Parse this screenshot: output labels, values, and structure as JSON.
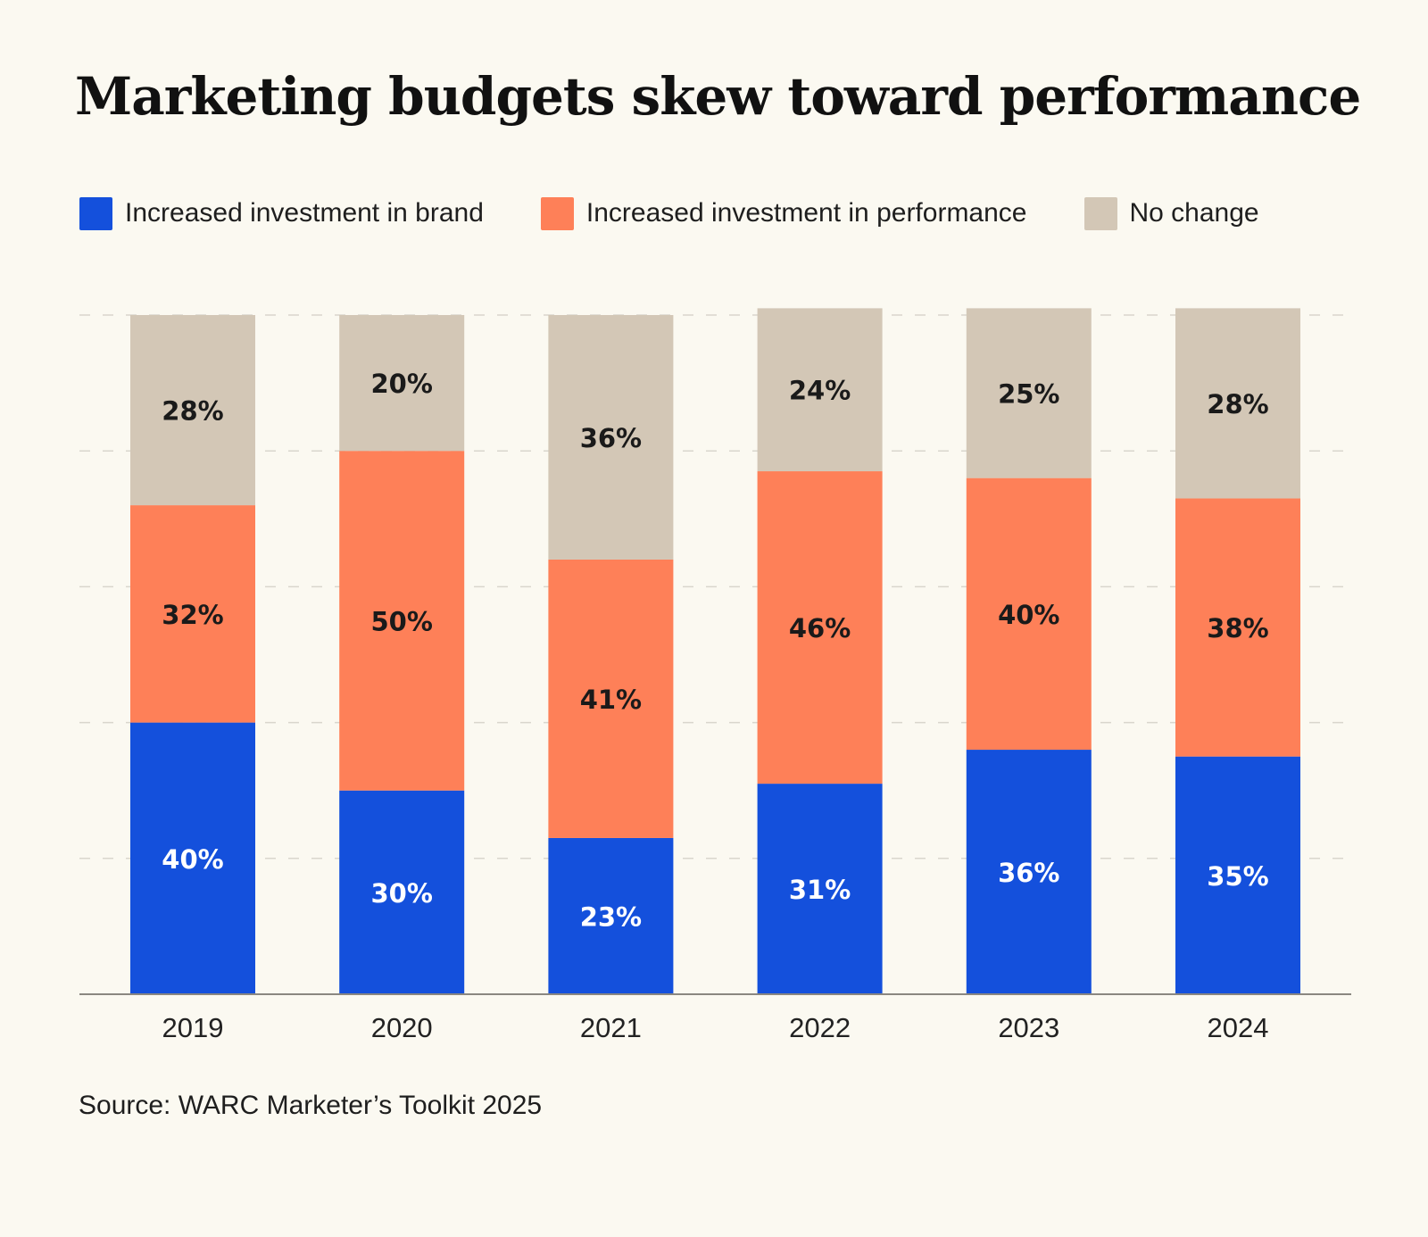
{
  "chart_data": {
    "type": "bar",
    "stacked": true,
    "title": "Marketing budgets skew toward performance",
    "xlabel": "",
    "ylabel": "",
    "ylim": [
      0,
      100
    ],
    "grid": true,
    "legend_position": "top",
    "categories": [
      "2019",
      "2020",
      "2021",
      "2022",
      "2023",
      "2024"
    ],
    "series": [
      {
        "name": "Increased investment in brand",
        "color": "#1450dc",
        "label_color": "#ffffff",
        "values": [
          40,
          30,
          23,
          31,
          36,
          35
        ]
      },
      {
        "name": "Increased investment in performance",
        "color": "#fe8058",
        "label_color": "#1a1a1a",
        "values": [
          32,
          50,
          41,
          46,
          40,
          38
        ]
      },
      {
        "name": "No change",
        "color": "#d3c7b6",
        "label_color": "#1a1a1a",
        "values": [
          28,
          20,
          36,
          24,
          25,
          28
        ]
      }
    ],
    "value_suffix": "%",
    "source": "Source: WARC Marketer’s Toolkit 2025"
  }
}
